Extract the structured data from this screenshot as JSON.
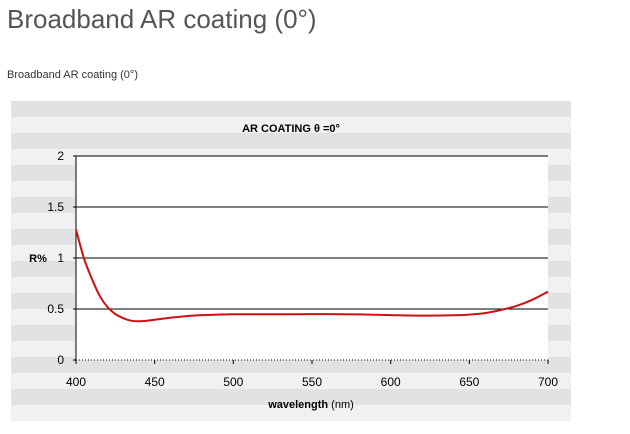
{
  "page": {
    "title": "Broadband AR coating (0°)",
    "caption": "Broadband AR coating  (0°)"
  },
  "chart_data": {
    "type": "line",
    "title": "AR COATING θ =0°",
    "xlabel_bold": "wavelength",
    "xlabel_unit": " (nm)",
    "ylabel": "R%",
    "xlim": [
      400,
      700
    ],
    "ylim": [
      0,
      2
    ],
    "xticks": [
      400,
      450,
      500,
      550,
      600,
      650,
      700
    ],
    "yticks": [
      0,
      0.5,
      1,
      1.5,
      2
    ],
    "ytick_labels": [
      "0",
      "0.5",
      "1",
      "1.5",
      "2"
    ],
    "grid": "horizontal",
    "line_color": "#cc1111",
    "series": [
      {
        "x": [
          400,
          405,
          410,
          415,
          420,
          425,
          430,
          435,
          440,
          445,
          450,
          460,
          470,
          480,
          490,
          500,
          520,
          540,
          560,
          580,
          600,
          620,
          640,
          650,
          660,
          670,
          680,
          690,
          700
        ],
        "y": [
          1.28,
          1.0,
          0.8,
          0.63,
          0.52,
          0.45,
          0.41,
          0.385,
          0.38,
          0.385,
          0.395,
          0.415,
          0.43,
          0.44,
          0.445,
          0.448,
          0.449,
          0.449,
          0.45,
          0.447,
          0.44,
          0.435,
          0.438,
          0.445,
          0.46,
          0.49,
          0.53,
          0.59,
          0.67
        ]
      }
    ]
  }
}
